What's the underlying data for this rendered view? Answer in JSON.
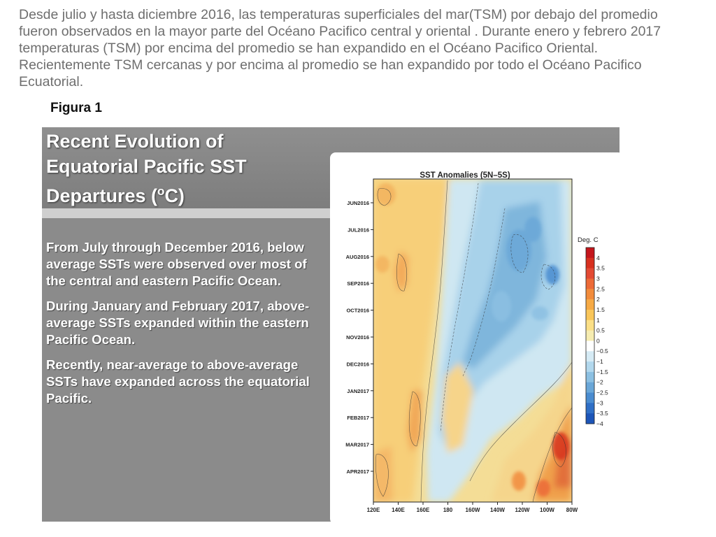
{
  "intro_text": "Desde julio y hasta diciembre 2016, las temperaturas superficiales del mar(TSM) por debajo del promedio fueron observados en la mayor parte del Océano Pacifico  central y oriental . Durante enero  y febrero 2017 temperaturas (TSM) por encima del promedio se han expandido en el Océano Pacifico Oriental. Recientemente TSM cercanas y por encima al promedio  se han expandido por todo el Océano Pacifico Ecuatorial.",
  "figure_label": "Figura 1",
  "slide": {
    "title_lines": [
      "Recent Evolution of",
      "Equatorial Pacific SST",
      "Departures (",
      "o",
      "C)"
    ],
    "paragraphs": [
      "From July through December 2016, below average SSTs were observed over most of the central and eastern Pacific Ocean.",
      "During January and February 2017, above-average SSTs expanded within the eastern Pacific Ocean.",
      "Recently, near-average to above-average SSTs have expanded across the equatorial Pacific."
    ]
  },
  "chart_data": {
    "type": "heatmap",
    "title": "SST Anomalies (5N–5S)",
    "x_ticks": [
      "120E",
      "140E",
      "160E",
      "180",
      "160W",
      "140W",
      "120W",
      "100W",
      "80W"
    ],
    "y_ticks": [
      "JUN2016",
      "JUL2016",
      "AUG2016",
      "SEP2016",
      "OCT2016",
      "NOV2016",
      "DEC2016",
      "JAN2017",
      "FEB2017",
      "MAR2017",
      "APR2017"
    ],
    "colorbar_title": "Deg. C",
    "colorbar_labels": [
      "4",
      "3.5",
      "3",
      "2.5",
      "2",
      "1.5",
      "1",
      "0.5",
      "0",
      "−0.5",
      "−1",
      "−1.5",
      "−2",
      "−2.5",
      "−3",
      "−3.5",
      "−4"
    ],
    "colorbar_colors": [
      "#c4161c",
      "#d7301f",
      "#e34a33",
      "#ec6a37",
      "#f28c3c",
      "#f6aa45",
      "#f9c65a",
      "#fbdf86",
      "#f6ecb0",
      "#ffffff",
      "#d6ebf5",
      "#b2d8ed",
      "#8cc0e2",
      "#6aa7d8",
      "#4a8cd0",
      "#2f6fc6",
      "#1c55b8"
    ],
    "xlim": [
      "120E",
      "80W"
    ],
    "ylim": [
      "JUN2016",
      "APR2017"
    ]
  }
}
